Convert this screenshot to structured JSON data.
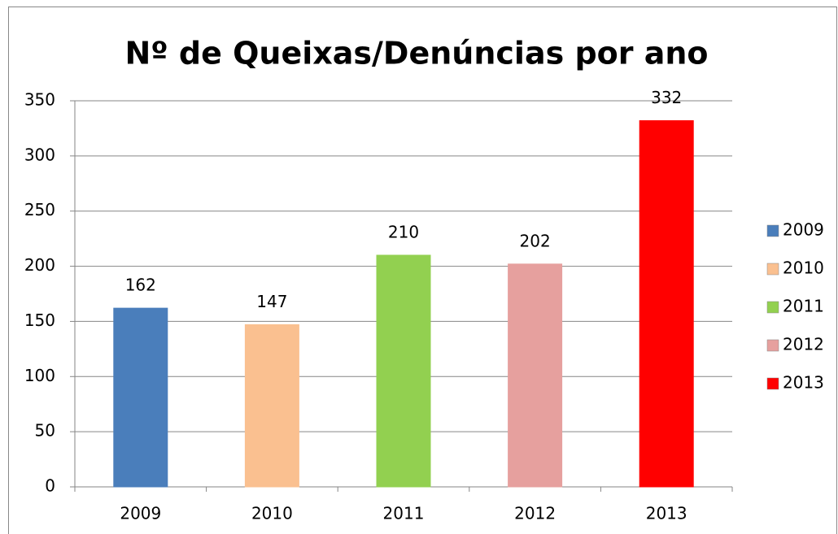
{
  "chart_data": {
    "type": "bar",
    "title": "Nº de Queixas/Denúncias por ano",
    "categories": [
      "2009",
      "2010",
      "2011",
      "2012",
      "2013"
    ],
    "values": [
      162,
      147,
      210,
      202,
      332
    ],
    "colors": [
      "#4a7ebb",
      "#fac090",
      "#92d050",
      "#e6a09e",
      "#ff0000"
    ],
    "ylim": [
      0,
      350
    ],
    "yticks": [
      0,
      50,
      100,
      150,
      200,
      250,
      300,
      350
    ],
    "grid": true,
    "legend": "right"
  }
}
